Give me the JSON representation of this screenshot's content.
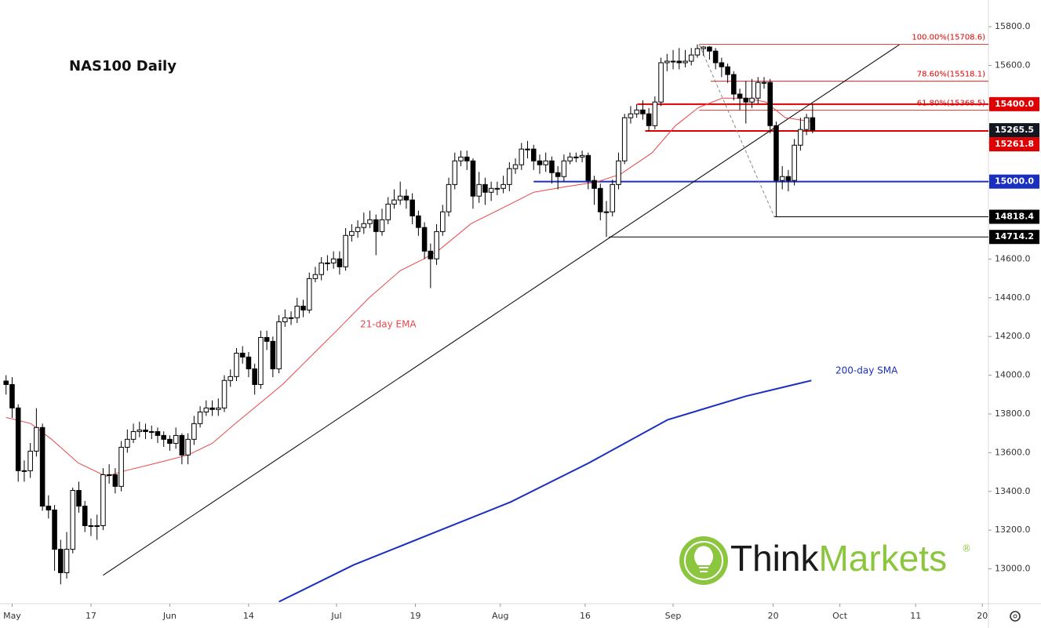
{
  "chart_data": {
    "type": "candlestick",
    "title": "NAS100 Daily",
    "x": [
      0,
      1,
      2,
      3,
      4,
      5,
      6,
      7,
      8,
      9,
      10,
      11,
      12,
      13,
      14,
      15,
      16,
      17,
      18,
      19,
      20,
      21,
      22,
      23,
      24,
      25,
      26,
      27,
      28,
      29,
      30,
      31,
      32,
      33,
      34,
      35,
      36,
      37,
      38,
      39,
      40,
      41,
      42,
      43,
      44,
      45,
      46,
      47,
      48,
      49,
      50,
      51,
      52,
      53,
      54,
      55,
      56,
      57,
      58,
      59,
      60,
      61,
      62,
      63,
      64,
      65,
      66,
      67,
      68,
      69,
      70,
      71,
      72,
      73,
      74,
      75,
      76,
      77,
      78,
      79,
      80,
      81,
      82,
      83,
      84,
      85,
      86,
      87,
      88,
      89,
      90,
      91,
      92,
      93,
      94,
      95,
      96,
      97,
      98,
      99,
      100,
      101,
      102,
      103,
      104,
      105,
      106,
      107,
      108,
      109,
      110,
      111,
      112,
      113,
      114,
      115,
      116,
      117,
      118,
      119,
      120,
      121,
      122,
      123,
      124,
      125,
      126,
      127,
      128,
      129,
      130,
      131,
      132,
      133
    ],
    "open": [
      13970,
      13952,
      13831,
      13507,
      13507,
      13608,
      13730,
      13324,
      13304,
      13101,
      12980,
      13101,
      13405,
      13324,
      13223,
      13223,
      13223,
      13486,
      13486,
      13426,
      13628,
      13669,
      13709,
      13717,
      13709,
      13709,
      13689,
      13669,
      13648,
      13689,
      13588,
      13669,
      13750,
      13810,
      13831,
      13823,
      13831,
      13973,
      13993,
      14114,
      14094,
      14033,
      13952,
      14195,
      14175,
      14033,
      14276,
      14297,
      14297,
      14357,
      14337,
      14499,
      14520,
      14580,
      14580,
      14601,
      14560,
      14722,
      14742,
      14763,
      14783,
      14803,
      14742,
      14803,
      14884,
      14905,
      14925,
      14905,
      14823,
      14763,
      14641,
      14601,
      14742,
      14844,
      14985,
      15107,
      15127,
      15107,
      14925,
      14985,
      14945,
      14965,
      14965,
      14985,
      15067,
      15087,
      15168,
      15168,
      15107,
      15087,
      15107,
      15046,
      15026,
      15107,
      15127,
      15127,
      15135,
      15006,
      14965,
      14844,
      14844,
      14985,
      15107,
      15330,
      15350,
      15370,
      15350,
      15289,
      15411,
      15614,
      15622,
      15622,
      15614,
      15622,
      15654,
      15687,
      15695,
      15674,
      15614,
      15593,
      15553,
      15452,
      15431,
      15411,
      15431,
      15512,
      15512,
      15289,
      15006,
      15026,
      15006,
      15188,
      15269,
      15330
    ],
    "high": [
      14000,
      13990,
      13850,
      13560,
      13650,
      13830,
      13750,
      13380,
      13330,
      13150,
      13190,
      13420,
      13450,
      13350,
      13260,
      13280,
      13520,
      13540,
      13520,
      13660,
      13720,
      13750,
      13760,
      13750,
      13740,
      13730,
      13710,
      13690,
      13730,
      13700,
      13700,
      13790,
      13840,
      13870,
      13870,
      13880,
      14000,
      14030,
      14140,
      14150,
      14120,
      14060,
      14230,
      14230,
      14200,
      14310,
      14340,
      14330,
      14400,
      14390,
      14530,
      14560,
      14610,
      14620,
      14640,
      14640,
      14760,
      14780,
      14800,
      14840,
      14850,
      14830,
      14860,
      14920,
      14960,
      15000,
      14960,
      14940,
      14850,
      14790,
      14680,
      14780,
      14880,
      15020,
      15150,
      15160,
      15160,
      15120,
      15050,
      15020,
      15000,
      15000,
      15030,
      15100,
      15120,
      15200,
      15210,
      15190,
      15140,
      15150,
      15130,
      15080,
      15140,
      15150,
      15150,
      15160,
      15150,
      15030,
      14990,
      14900,
      15010,
      15150,
      15350,
      15390,
      15400,
      15420,
      15380,
      15440,
      15640,
      15660,
      15680,
      15690,
      15680,
      15690,
      15708.6,
      15700,
      15700,
      15690,
      15640,
      15610,
      15570,
      15480,
      15520,
      15530,
      15540,
      15540,
      15530,
      15310,
      15080,
      15060,
      15220,
      15330,
      15350,
      15400
    ],
    "low": [
      13900,
      13780,
      13450,
      13450,
      13470,
      13580,
      13300,
      13260,
      12990,
      12920,
      12950,
      13080,
      13290,
      13190,
      13170,
      13150,
      13200,
      13440,
      13390,
      13400,
      13600,
      13650,
      13680,
      13670,
      13670,
      13650,
      13630,
      13610,
      13620,
      13540,
      13540,
      13640,
      13730,
      13790,
      13790,
      13790,
      13810,
      13940,
      13970,
      14060,
      13990,
      13900,
      13930,
      14130,
      13990,
      14010,
      14250,
      14260,
      14270,
      14300,
      14320,
      14480,
      14490,
      14540,
      14550,
      14520,
      14540,
      14690,
      14710,
      14730,
      14760,
      14620,
      14720,
      14780,
      14860,
      14880,
      14860,
      14780,
      14720,
      14600,
      14450,
      14570,
      14720,
      14820,
      14960,
      15080,
      15060,
      14860,
      14890,
      14880,
      14900,
      14930,
      14940,
      14950,
      15040,
      15060,
      15120,
      15060,
      15040,
      15050,
      14990,
      14960,
      15000,
      15090,
      15100,
      15100,
      14960,
      14880,
      14800,
      14714.2,
      14820,
      14960,
      15090,
      15300,
      15330,
      15320,
      15260,
      15270,
      15390,
      15570,
      15580,
      15580,
      15590,
      15600,
      15640,
      15650,
      15630,
      15580,
      15540,
      15510,
      15420,
      15370,
      15300,
      15380,
      15400,
      15480,
      15250,
      14818.4,
      14960,
      14950,
      14980,
      15160,
      15240,
      15250
    ],
    "close": [
      13952,
      13831,
      13507,
      13507,
      13608,
      13730,
      13324,
      13304,
      13101,
      12980,
      13101,
      13405,
      13324,
      13223,
      13223,
      13223,
      13486,
      13486,
      13426,
      13628,
      13669,
      13709,
      13717,
      13709,
      13709,
      13689,
      13669,
      13648,
      13689,
      13588,
      13669,
      13750,
      13810,
      13831,
      13823,
      13831,
      13973,
      13993,
      14114,
      14094,
      14033,
      13952,
      14195,
      14175,
      14033,
      14276,
      14297,
      14297,
      14357,
      14337,
      14499,
      14520,
      14580,
      14580,
      14601,
      14560,
      14722,
      14742,
      14763,
      14783,
      14803,
      14742,
      14803,
      14884,
      14905,
      14925,
      14905,
      14823,
      14763,
      14641,
      14601,
      14742,
      14844,
      14985,
      15107,
      15127,
      15107,
      14925,
      14985,
      14945,
      14965,
      14965,
      14985,
      15067,
      15087,
      15168,
      15168,
      15107,
      15087,
      15107,
      15046,
      15026,
      15107,
      15127,
      15127,
      15135,
      15006,
      14965,
      14844,
      14844,
      14985,
      15107,
      15330,
      15350,
      15370,
      15350,
      15289,
      15411,
      15614,
      15622,
      15622,
      15614,
      15622,
      15654,
      15687,
      15695,
      15674,
      15614,
      15593,
      15553,
      15452,
      15431,
      15411,
      15431,
      15512,
      15512,
      15289,
      15006,
      15026,
      15006,
      15188,
      15269,
      15330,
      15265.5
    ],
    "up_color": "#ffffff",
    "down_color": "#000000",
    "xlim": [
      -1,
      162
    ],
    "xticks": [
      {
        "value": 1,
        "label": "May"
      },
      {
        "value": 14,
        "label": "17"
      },
      {
        "value": 27,
        "label": "Jun"
      },
      {
        "value": 40,
        "label": "14"
      },
      {
        "value": 54.5,
        "label": "Jul"
      },
      {
        "value": 67.5,
        "label": "19"
      },
      {
        "value": 81.5,
        "label": "Aug"
      },
      {
        "value": 95.5,
        "label": "16"
      },
      {
        "value": 110,
        "label": "Sep"
      },
      {
        "value": 126.5,
        "label": "20"
      },
      {
        "value": 137.5,
        "label": "Oct"
      },
      {
        "value": 150,
        "label": "11"
      },
      {
        "value": 161,
        "label": "20"
      }
    ],
    "ylim": [
      12820,
      15938
    ],
    "yticks": [
      {
        "value": 13000,
        "label": "13000.0"
      },
      {
        "value": 13200,
        "label": "13200.0"
      },
      {
        "value": 13400,
        "label": "13400.0"
      },
      {
        "value": 13600,
        "label": "13600.0"
      },
      {
        "value": 13800,
        "label": "13800.0"
      },
      {
        "value": 14000,
        "label": "14000.0"
      },
      {
        "value": 14200,
        "label": "14200.0"
      },
      {
        "value": 14400,
        "label": "14400.0"
      },
      {
        "value": 14600,
        "label": "14600.0"
      },
      {
        "value": 14800,
        "label": "14800.0"
      },
      {
        "value": 15000,
        "label": "15000.0"
      },
      {
        "value": 15200,
        "label": "15200.0"
      },
      {
        "value": 15400,
        "label": "15400.0"
      },
      {
        "value": 15600,
        "label": "15600.0"
      },
      {
        "value": 15800,
        "label": "15800.0"
      }
    ],
    "overlays": [
      {
        "name": "21-day EMA",
        "color": "#e8474a",
        "width": 1,
        "x": [
          0,
          4.1,
          7.5,
          11.9,
          16.5,
          19.7,
          24.9,
          30,
          34,
          37.8,
          41.7,
          45.6,
          50.8,
          54.7,
          59.8,
          65,
          68.9,
          71.5,
          76.7,
          81.9,
          87,
          92.2,
          97.4,
          101.3,
          106.5,
          110.4,
          114.2,
          118.1,
          122,
          125.3,
          128.5,
          132.8
        ],
        "values": [
          13782,
          13750,
          13669,
          13547,
          13478,
          13507,
          13547,
          13588,
          13648,
          13750,
          13851,
          13952,
          14114,
          14236,
          14398,
          14540,
          14601,
          14649,
          14783,
          14864,
          14945,
          14973,
          14998,
          15038,
          15148,
          15289,
          15383,
          15431,
          15431,
          15411,
          15330,
          15310
        ]
      },
      {
        "name": "200-day SMA",
        "color": "#1a2fbf",
        "width": 2,
        "x": [
          45,
          57.3,
          70.2,
          83.2,
          96.1,
          109.1,
          122,
          132.8
        ],
        "values": [
          12830,
          13020,
          13182,
          13345,
          13547,
          13770,
          13892,
          13973
        ]
      }
    ],
    "trendline": {
      "color": "#000000",
      "x": [
        16,
        147.3
      ],
      "values": [
        12967,
        15707
      ]
    },
    "fib_swing": {
      "color": "#888888",
      "x": [
        114.3,
        126.7
      ],
      "values": [
        15708.6,
        14818.4
      ]
    },
    "fib_levels": [
      {
        "value": 15708.6,
        "label": "100.00%(15708.6)",
        "start": 114.3
      },
      {
        "value": 15518.1,
        "label": "78.60%(15518.1)",
        "start": 116.2
      },
      {
        "value": 15368.5,
        "label": "61.80%(15368.5)",
        "start": 114.3
      }
    ],
    "fib_color": "#e00000",
    "levels": [
      {
        "value": 15400,
        "label": "15400.0",
        "color": "#e00000",
        "start": 104.1,
        "width": 2
      },
      {
        "value": 15261.8,
        "label": "15261.8",
        "color": "#e00000",
        "start": 105.4,
        "width": 2
      },
      {
        "value": 15000,
        "label": "15000.0",
        "color": "#1a2fbf",
        "start": 87,
        "width": 2
      },
      {
        "value": 14818.4,
        "label": "14818.4",
        "color": "#000000",
        "start": 126.7,
        "width": 1
      },
      {
        "value": 14714.2,
        "label": "14714.2",
        "color": "#000000",
        "start": 99.4,
        "width": 1
      }
    ],
    "last_price": {
      "value": 15265.5,
      "label": "15265.5",
      "color": "#131722"
    },
    "logo": {
      "think": "Think",
      "markets": "Markets",
      "mark": "®"
    }
  }
}
